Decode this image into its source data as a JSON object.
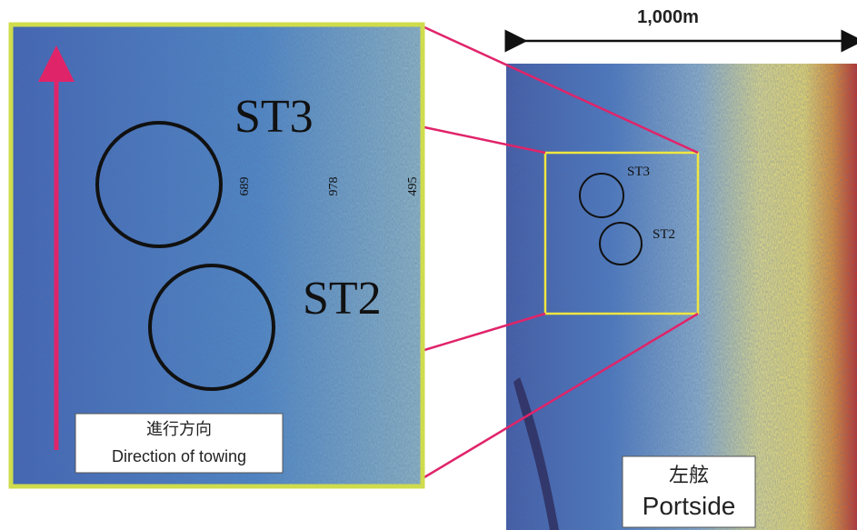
{
  "scale_label": "1,000m",
  "zoom": {
    "labels": [
      "ST3",
      "ST2"
    ],
    "tick_numbers": [
      "689",
      "978",
      "495"
    ],
    "direction_label": {
      "ja": "進行方向",
      "en": "Direction of towing"
    }
  },
  "overview": {
    "labels": [
      "ST3",
      "ST2"
    ],
    "side_label": {
      "ja": "左舷",
      "en": "Portside"
    }
  }
}
